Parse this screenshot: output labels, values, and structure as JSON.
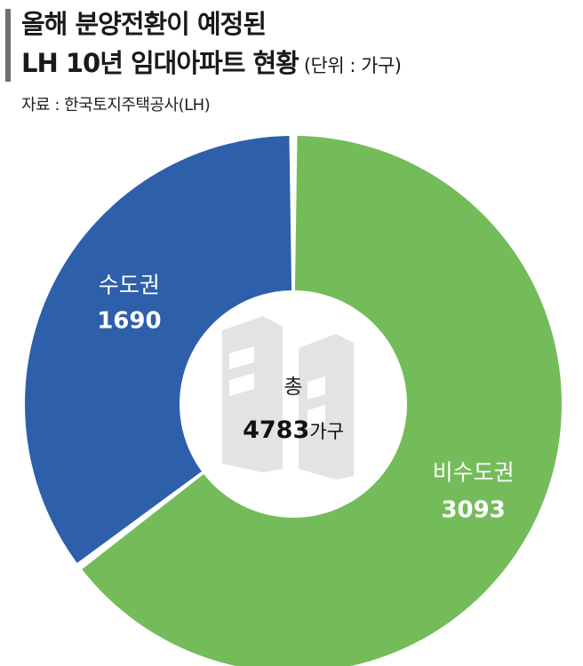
{
  "header": {
    "title_line1": "올해 분양전환이 예정된",
    "title_line2": "LH 10년 임대아파트 현황",
    "unit": "(단위 : 가구)",
    "source": "자료 : 한국토지주택공사(LH)"
  },
  "chart_data": {
    "type": "pie",
    "title": "",
    "slices": [
      {
        "name": "수도권",
        "value": 1690,
        "label": "1690",
        "color": "#2e5faa"
      },
      {
        "name": "비수도권",
        "value": 3093,
        "label": "3093",
        "color": "#74bc5a"
      }
    ],
    "center": {
      "title": "총",
      "total": "4783",
      "unit": "가구"
    },
    "legend": "none"
  },
  "colors": {
    "title_bar": "#6e6e6e",
    "center_bg": "#ffffff",
    "building_icon": "#e3e3e3"
  },
  "icons": {
    "center": "building-icon"
  }
}
